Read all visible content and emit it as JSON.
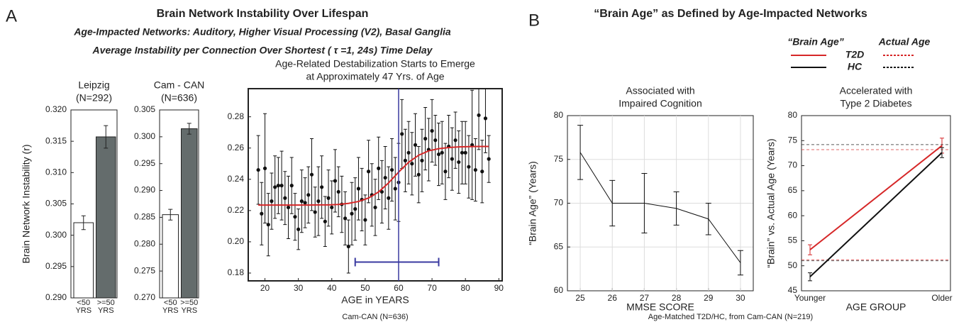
{
  "panels": [
    {
      "letter": "A",
      "title": "Brain Network Instability Over Lifespan",
      "subtitle": [
        "Age-Impacted Networks:  Auditory, Higher Visual Processing (V2), Basal Ganglia",
        "Average Instability per Connection Over Shortest ( τ =1, 24s) Time Delay"
      ]
    },
    {
      "letter": "B",
      "title": "“Brain Age” as Defined by Age-Impacted Networks",
      "footnote": "Age-Matched T2D/HC, from Cam-CAN (N=219)"
    }
  ],
  "chart_data": [
    {
      "type": "bar",
      "title": [
        "Leipzig",
        "(N=292)"
      ],
      "ylabel": "Brain Network Instability (r)",
      "categories": [
        "<50 YRS",
        ">=50 YRS"
      ],
      "values": [
        0.302,
        0.3157
      ],
      "errors": [
        0.0011,
        0.0018
      ],
      "colors": [
        "#ffffff",
        "#646c6c"
      ],
      "ylim": [
        0.29,
        0.32
      ],
      "yticks": [
        {
          "value": 0.29,
          "label": "0.290"
        },
        0.295,
        {
          "value": 0.3,
          "label": "0.300"
        },
        0.305,
        {
          "value": 0.31,
          "label": "0.310"
        },
        0.315,
        {
          "value": 0.32,
          "label": "0.320"
        }
      ]
    },
    {
      "type": "bar",
      "title": [
        "Cam - CAN",
        "(N=636)"
      ],
      "categories": [
        "<50 YRS",
        ">=50 YRS"
      ],
      "values": [
        0.2855,
        0.3015
      ],
      "errors": [
        0.001,
        0.001
      ],
      "colors": [
        "#ffffff",
        "#646c6c"
      ],
      "ylim": [
        0.27,
        0.305
      ],
      "yticks": [
        {
          "value": 0.27,
          "label": "0.270"
        },
        0.275,
        {
          "value": 0.28,
          "label": "0.280"
        },
        0.285,
        {
          "value": 0.29,
          "label": "0.290"
        },
        0.295,
        {
          "value": 0.3,
          "label": "0.300"
        },
        0.305
      ]
    },
    {
      "type": "scatter",
      "title": [
        "Age-Related Destabilization Starts to Emerge",
        "at Approximately 47 Yrs. of Age"
      ],
      "xlabel": "AGE in YEARS",
      "note": "Cam-CAN (N=636)",
      "color": "#111111",
      "x": [
        18,
        19,
        20,
        21,
        22,
        23,
        24,
        25,
        26,
        27,
        28,
        29,
        30,
        31,
        32,
        33,
        34,
        35,
        36,
        37,
        38,
        39,
        40,
        41,
        42,
        43,
        44,
        45,
        46,
        47,
        48,
        49,
        50,
        51,
        52,
        53,
        54,
        55,
        56,
        57,
        58,
        59,
        60,
        61,
        62,
        63,
        64,
        65,
        66,
        67,
        68,
        69,
        70,
        71,
        72,
        73,
        74,
        75,
        76,
        77,
        78,
        79,
        80,
        81,
        82,
        83,
        84,
        85,
        86,
        87
      ],
      "values": [
        0.246,
        0.218,
        0.247,
        0.211,
        0.226,
        0.235,
        0.236,
        0.236,
        0.228,
        0.222,
        0.236,
        0.216,
        0.208,
        0.226,
        0.225,
        0.23,
        0.243,
        0.219,
        0.226,
        0.235,
        0.213,
        0.228,
        0.222,
        0.239,
        0.232,
        0.224,
        0.215,
        0.197,
        0.218,
        0.221,
        0.234,
        0.227,
        0.214,
        0.245,
        0.23,
        0.222,
        0.247,
        0.232,
        0.241,
        0.228,
        0.246,
        0.234,
        0.238,
        0.269,
        0.252,
        0.257,
        0.25,
        0.262,
        0.243,
        0.252,
        0.266,
        0.259,
        0.271,
        0.265,
        0.256,
        0.257,
        0.245,
        0.261,
        0.253,
        0.265,
        0.251,
        0.257,
        0.257,
        0.248,
        0.262,
        0.246,
        0.281,
        0.245,
        0.279,
        0.253
      ],
      "errors": [
        0.022,
        0.02,
        0.035,
        0.02,
        0.018,
        0.02,
        0.018,
        0.022,
        0.017,
        0.02,
        0.018,
        0.015,
        0.013,
        0.02,
        0.016,
        0.018,
        0.023,
        0.016,
        0.022,
        0.02,
        0.016,
        0.018,
        0.017,
        0.02,
        0.016,
        0.018,
        0.017,
        0.017,
        0.02,
        0.02,
        0.02,
        0.02,
        0.016,
        0.02,
        0.02,
        0.018,
        0.02,
        0.02,
        0.02,
        0.02,
        0.02,
        0.02,
        0.025,
        0.022,
        0.02,
        0.02,
        0.02,
        0.02,
        0.018,
        0.02,
        0.02,
        0.02,
        0.02,
        0.016,
        0.02,
        0.02,
        0.018,
        0.02,
        0.02,
        0.018,
        0.02,
        0.02,
        0.02,
        0.02,
        0.035,
        0.02,
        0.022,
        0.02,
        0.022,
        0.015
      ],
      "fit": {
        "color": "#d62728",
        "x": [
          18,
          21,
          24,
          27,
          30,
          33,
          36,
          39,
          42,
          45,
          48,
          51,
          54,
          57,
          60,
          63,
          66,
          69,
          72,
          75,
          78,
          81,
          84,
          87
        ],
        "values": [
          0.2235,
          0.2235,
          0.2235,
          0.2235,
          0.2235,
          0.2235,
          0.2236,
          0.2236,
          0.2239,
          0.2246,
          0.2258,
          0.228,
          0.2319,
          0.2377,
          0.2446,
          0.2509,
          0.2554,
          0.2582,
          0.2596,
          0.2603,
          0.2607,
          0.2609,
          0.261,
          0.261
        ]
      },
      "vline": 60,
      "interval": {
        "x": [
          47,
          72
        ],
        "y": 0.187
      },
      "marker_color": "#3a3aa0",
      "xlim": [
        15,
        91
      ],
      "xticks": [
        20,
        30,
        40,
        50,
        60,
        70,
        80,
        90
      ],
      "ylim": [
        0.175,
        0.298
      ],
      "yticks": [
        0.18,
        {
          "value": 0.2,
          "label": "0.20"
        },
        0.22,
        0.24,
        0.26,
        0.28
      ]
    },
    {
      "type": "line",
      "title": [
        "Associated with",
        "Impaired Cognition"
      ],
      "xlabel": "MMSE SCORE",
      "ylabel": "“Brain Age” (Years)",
      "grid": true,
      "color": "#111111",
      "x": [
        25,
        26,
        27,
        28,
        29,
        30
      ],
      "values": [
        75.8,
        70,
        70,
        69.4,
        68.2,
        63.2
      ],
      "errors": [
        3.1,
        2.6,
        3.4,
        1.9,
        1.8,
        1.4
      ],
      "xlim": [
        24.6,
        30.4
      ],
      "xticks": [
        25,
        26,
        27,
        28,
        29,
        30
      ],
      "ylim": [
        60,
        80
      ],
      "yticks": [
        60,
        65,
        70,
        75,
        80
      ]
    },
    {
      "type": "line",
      "title": [
        "Accelerated with",
        "Type 2 Diabetes"
      ],
      "xlabel": "AGE GROUP",
      "ylabel": "“Brain” vs. Actual Age (Years)",
      "legend_headers": [
        "“Brain Age”",
        "Actual Age"
      ],
      "categories": [
        "Younger",
        "Older"
      ],
      "series": [
        {
          "name": "T2D",
          "color": "#d62728",
          "values": [
            53.2,
            74
          ],
          "errors": [
            1,
            1.5
          ],
          "actual_age": [
            51.2,
            73.2
          ]
        },
        {
          "name": "HC",
          "color": "#111111",
          "values": [
            47.8,
            72.6
          ],
          "errors": [
            0.8,
            1
          ],
          "actual_age": [
            51,
            74.2
          ]
        }
      ],
      "ylim": [
        45,
        80
      ],
      "yticks": [
        45,
        50,
        55,
        60,
        65,
        70,
        75,
        80
      ]
    }
  ]
}
